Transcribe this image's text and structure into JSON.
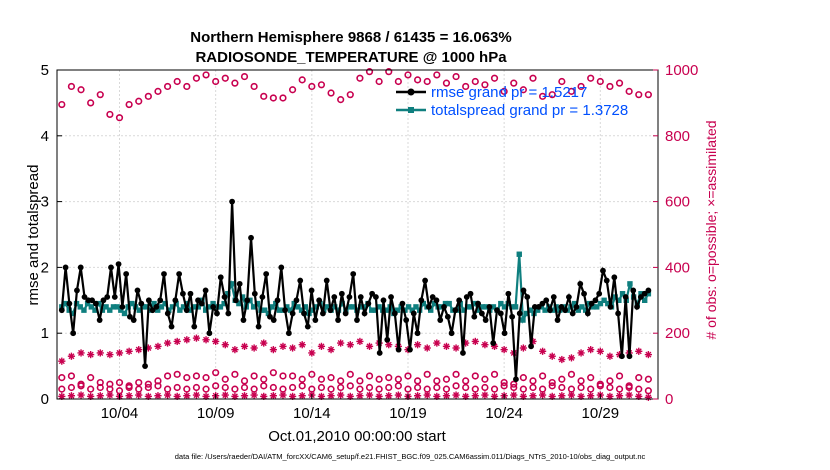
{
  "chart_data": {
    "type": "line",
    "title_line1": "Northern Hemisphere 9868 / 61435 = 16.063%",
    "title_line2": "RADIOSONDE_TEMPERATURE @ 1000 hPa",
    "xlabel": "Oct.01,2010 00:00:00 start",
    "ylabel": "rmse and totalspread",
    "ylabel_right": "# of obs: o=possible; ×=assimilated",
    "x_ticks": [
      "10/04",
      "10/09",
      "10/14",
      "10/19",
      "10/24",
      "10/29"
    ],
    "y_ticks": [
      "0",
      "1",
      "2",
      "3",
      "4",
      "5"
    ],
    "y_ticks_right": [
      "0",
      "200",
      "400",
      "600",
      "800",
      "1000"
    ],
    "xlim": [
      0.75,
      32.0
    ],
    "ylim": [
      0,
      5
    ],
    "ylim_right": [
      0,
      1000
    ],
    "legend": [
      {
        "label": "rmse grand pr = 1.5217",
        "color": "#000000"
      },
      {
        "label": "totalspread grand pr = 1.3728",
        "color": "#0f7f7f"
      }
    ],
    "series": [
      {
        "name": "rmse",
        "axis": "left",
        "color": "#000000",
        "values": [
          1.35,
          2.0,
          1.45,
          1.0,
          1.65,
          2.0,
          1.55,
          1.5,
          1.5,
          1.45,
          1.2,
          1.5,
          1.55,
          2.0,
          1.55,
          2.05,
          1.4,
          1.9,
          1.25,
          1.2,
          1.65,
          1.45,
          0.5,
          1.5,
          1.35,
          1.4,
          1.5,
          1.9,
          1.3,
          1.1,
          1.5,
          1.9,
          1.6,
          1.35,
          1.6,
          1.1,
          1.5,
          1.45,
          1.65,
          1.0,
          1.4,
          1.3,
          1.85,
          1.55,
          1.3,
          3.0,
          1.5,
          1.75,
          1.2,
          1.5,
          2.45,
          1.6,
          1.1,
          1.55,
          1.9,
          1.25,
          1.2,
          1.5,
          2.0,
          1.35,
          1.0,
          1.3,
          1.5,
          1.8,
          1.3,
          1.1,
          1.65,
          1.2,
          1.5,
          1.3,
          1.8,
          1.35,
          1.55,
          1.2,
          1.6,
          1.3,
          1.55,
          1.9,
          1.2,
          1.55,
          1.3,
          1.45,
          1.6,
          1.55,
          0.7,
          1.5,
          0.9,
          1.55,
          1.3,
          0.75,
          1.45,
          1.2,
          0.75,
          1.3,
          1.0,
          1.5,
          1.8,
          1.4,
          1.55,
          1.5,
          1.2,
          1.4,
          1.25,
          1.0,
          1.35,
          1.5,
          0.7,
          1.55,
          1.6,
          1.25,
          1.45,
          1.3,
          1.2,
          1.4,
          0.85,
          1.35,
          1.3,
          1.0,
          1.6,
          1.25,
          0.3,
          1.3,
          1.65,
          1.55,
          0.8,
          1.4,
          1.4,
          1.45,
          1.5,
          1.35,
          1.55,
          1.2,
          1.4,
          1.35,
          1.55,
          1.3,
          1.4,
          1.75,
          1.6,
          1.3,
          1.45,
          1.5,
          1.6,
          1.95,
          1.8,
          1.4,
          1.85,
          1.3,
          0.65,
          1.55,
          0.65,
          1.65,
          1.4,
          1.55,
          1.6,
          1.65
        ]
      },
      {
        "name": "totalspread",
        "axis": "left",
        "color": "#0f7f7f",
        "values": [
          1.4,
          1.45,
          1.35,
          1.3,
          1.45,
          1.4,
          1.35,
          1.45,
          1.4,
          1.35,
          1.45,
          1.35,
          1.4,
          1.35,
          1.4,
          1.4,
          1.35,
          1.3,
          1.4,
          1.45,
          1.4,
          1.35,
          1.4,
          1.4,
          1.35,
          1.45,
          1.35,
          1.4,
          1.45,
          1.35,
          1.4,
          1.45,
          1.35,
          1.4,
          1.45,
          1.35,
          1.4,
          1.4,
          1.5,
          1.35,
          1.4,
          1.45,
          1.4,
          1.4,
          1.45,
          1.6,
          1.75,
          1.5,
          1.45,
          1.55,
          1.4,
          1.5,
          1.4,
          1.45,
          1.35,
          1.35,
          1.3,
          1.4,
          1.45,
          1.35,
          1.35,
          1.4,
          1.35,
          1.45,
          1.4,
          1.35,
          1.4,
          1.3,
          1.35,
          1.4,
          1.45,
          1.35,
          1.4,
          1.35,
          1.4,
          1.35,
          1.45,
          1.35,
          1.4,
          1.4,
          1.35,
          1.4,
          1.4,
          1.45,
          1.35,
          1.35,
          1.4,
          1.35,
          1.35,
          1.4,
          1.3,
          1.35,
          1.4,
          1.35,
          1.4,
          1.35,
          1.4,
          1.35,
          1.45,
          1.4,
          1.35,
          1.45,
          1.4,
          1.4,
          1.45,
          1.45,
          1.35,
          1.35,
          1.45,
          1.35,
          1.4,
          1.4,
          1.45,
          1.35,
          1.4,
          1.4,
          1.35,
          1.4,
          1.35,
          1.45,
          1.4,
          1.45,
          1.4,
          1.4,
          2.2,
          1.2,
          1.3,
          1.35,
          1.3,
          1.35,
          1.4,
          1.35,
          1.4,
          1.35,
          1.4,
          1.35,
          1.4,
          1.35,
          1.4,
          1.45,
          1.35,
          1.4,
          1.35,
          1.45,
          1.4,
          1.4,
          1.45,
          1.5,
          1.45,
          1.4,
          1.55,
          1.5,
          1.6,
          1.5,
          1.75,
          1.55,
          1.45,
          1.6,
          1.5,
          1.6
        ]
      },
      {
        "name": "obs possible (daily, 00Z)",
        "axis": "right",
        "color": "#c8004f",
        "marker": "o",
        "x": [
          1,
          1.5,
          2,
          2.5,
          3,
          3.5,
          4,
          4.5,
          5,
          5.5,
          6,
          6.5,
          7,
          7.5,
          8,
          8.5,
          9,
          9.5,
          10,
          10.5,
          11,
          11.5,
          12,
          12.5,
          13,
          13.5,
          14,
          14.5,
          15,
          15.5,
          16,
          16.5,
          17,
          17.5,
          18,
          18.5,
          19,
          19.5,
          20,
          20.5,
          21,
          21.5,
          22,
          22.5,
          23,
          23.5,
          24,
          24.5,
          25,
          25.5,
          26,
          26.5,
          27,
          27.5,
          28,
          28.5,
          29,
          29.5,
          30,
          30.5,
          31,
          31.5
        ],
        "values": [
          895,
          950,
          940,
          900,
          925,
          865,
          855,
          895,
          905,
          920,
          935,
          950,
          965,
          950,
          975,
          985,
          965,
          975,
          960,
          980,
          950,
          920,
          915,
          915,
          940,
          970,
          950,
          955,
          930,
          910,
          925,
          975,
          995,
          965,
          995,
          965,
          985,
          970,
          965,
          985,
          960,
          980,
          950,
          965,
          955,
          975,
          935,
          960,
          940,
          975,
          920,
          925,
          965,
          935,
          950,
          975,
          965,
          950,
          960,
          935,
          925,
          925
        ]
      },
      {
        "name": "obs possible (daily, 12Z)",
        "axis": "right",
        "color": "#c8004f",
        "marker": "o",
        "x": [
          1,
          1.5,
          2,
          2.5,
          3,
          3.5,
          4,
          4.5,
          5,
          5.5,
          6,
          6.5,
          7,
          7.5,
          8,
          8.5,
          9,
          9.5,
          10,
          10.5,
          11,
          11.5,
          12,
          12.5,
          13,
          13.5,
          14,
          14.5,
          15,
          15.5,
          16,
          16.5,
          17,
          17.5,
          18,
          18.5,
          19,
          19.5,
          20,
          20.5,
          21,
          21.5,
          22,
          22.5,
          23,
          23.5,
          24,
          24.5,
          25,
          25.5,
          26,
          26.5,
          27,
          27.5,
          28,
          28.5,
          29,
          29.5,
          30,
          30.5,
          31,
          31.5
        ],
        "values": [
          65,
          70,
          45,
          65,
          50,
          45,
          50,
          40,
          50,
          45,
          55,
          70,
          75,
          65,
          70,
          65,
          80,
          60,
          75,
          55,
          70,
          60,
          80,
          70,
          70,
          60,
          75,
          60,
          65,
          55,
          75,
          55,
          70,
          60,
          65,
          60,
          70,
          55,
          75,
          55,
          60,
          75,
          55,
          70,
          60,
          75,
          50,
          45,
          65,
          55,
          70,
          50,
          60,
          75,
          55,
          65,
          45,
          55,
          70,
          40,
          65,
          60
        ]
      },
      {
        "name": "obs possible (small)",
        "axis": "right",
        "color": "#c8004f",
        "marker": "o",
        "x": [
          1,
          1.5,
          2,
          2.5,
          3,
          3.5,
          4,
          4.5,
          5,
          5.5,
          6,
          6.5,
          7,
          7.5,
          8,
          8.5,
          9,
          9.5,
          10,
          10.5,
          11,
          11.5,
          12,
          12.5,
          13,
          13.5,
          14,
          14.5,
          15,
          15.5,
          16,
          16.5,
          17,
          17.5,
          18,
          18.5,
          19,
          19.5,
          20,
          20.5,
          21,
          21.5,
          22,
          22.5,
          23,
          23.5,
          24,
          24.5,
          25,
          25.5,
          26,
          26.5,
          27,
          27.5,
          28,
          28.5,
          29,
          29.5,
          30,
          30.5,
          31,
          31.5
        ],
        "values": [
          30,
          35,
          40,
          30,
          35,
          30,
          25,
          35,
          30,
          35,
          40,
          30,
          35,
          30,
          35,
          30,
          40,
          35,
          30,
          35,
          30,
          40,
          35,
          30,
          35,
          40,
          30,
          35,
          30,
          35,
          40,
          30,
          35,
          30,
          35,
          40,
          30,
          35,
          30,
          35,
          30,
          40,
          35,
          30,
          35,
          30,
          40,
          35,
          30,
          35,
          30,
          40,
          35,
          30,
          35,
          30,
          40,
          35,
          30,
          35,
          30,
          25
        ]
      },
      {
        "name": "obs assimilated (00Z)",
        "axis": "right",
        "color": "#c8004f",
        "marker": "*",
        "x": [
          1,
          1.5,
          2,
          2.5,
          3,
          3.5,
          4,
          4.5,
          5,
          5.5,
          6,
          6.5,
          7,
          7.5,
          8,
          8.5,
          9,
          9.5,
          10,
          10.5,
          11,
          11.5,
          12,
          12.5,
          13,
          13.5,
          14,
          14.5,
          15,
          15.5,
          16,
          16.5,
          17,
          17.5,
          18,
          18.5,
          19,
          19.5,
          20,
          20.5,
          21,
          21.5,
          22,
          22.5,
          23,
          23.5,
          24,
          24.5,
          25,
          25.5,
          26,
          26.5,
          27,
          27.5,
          28,
          28.5,
          29,
          29.5,
          30,
          30.5,
          31,
          31.5
        ],
        "values": [
          115,
          130,
          140,
          135,
          140,
          135,
          140,
          145,
          150,
          155,
          160,
          170,
          175,
          180,
          185,
          180,
          175,
          165,
          150,
          160,
          155,
          170,
          150,
          160,
          155,
          165,
          140,
          160,
          150,
          170,
          165,
          175,
          160,
          170,
          165,
          160,
          150,
          165,
          155,
          170,
          160,
          155,
          170,
          175,
          165,
          160,
          150,
          140,
          155,
          175,
          145,
          130,
          120,
          125,
          140,
          150,
          145,
          130,
          135,
          140,
          145,
          135
        ]
      },
      {
        "name": "obs assimilated (12Z)",
        "axis": "right",
        "color": "#c8004f",
        "marker": "*",
        "x": [
          1,
          1.5,
          2,
          2.5,
          3,
          3.5,
          4,
          4.5,
          5,
          5.5,
          6,
          6.5,
          7,
          7.5,
          8,
          8.5,
          9,
          9.5,
          10,
          10.5,
          11,
          11.5,
          12,
          12.5,
          13,
          13.5,
          14,
          14.5,
          15,
          15.5,
          16,
          16.5,
          17,
          17.5,
          18,
          18.5,
          19,
          19.5,
          20,
          20.5,
          21,
          21.5,
          22,
          22.5,
          23,
          23.5,
          24,
          24.5,
          25,
          25.5,
          26,
          26.5,
          27,
          27.5,
          28,
          28.5,
          29,
          29.5,
          30,
          30.5,
          31,
          31.5
        ],
        "values": [
          8,
          10,
          12,
          8,
          10,
          12,
          8,
          10,
          12,
          8,
          10,
          12,
          8,
          10,
          12,
          8,
          10,
          12,
          8,
          10,
          12,
          8,
          10,
          12,
          8,
          10,
          12,
          8,
          10,
          12,
          8,
          10,
          12,
          8,
          10,
          12,
          8,
          10,
          12,
          8,
          10,
          12,
          8,
          10,
          12,
          8,
          10,
          12,
          8,
          10,
          12,
          8,
          10,
          12,
          8,
          10,
          12,
          8,
          10,
          12,
          8,
          5
        ]
      }
    ]
  },
  "footer": "data file: /Users/raeder/DAI/ATM_forcXX/CAM6_setup/f.e21.FHIST_BGC.f09_025.CAM6assim.011/Diags_NTrS_2010-10/obs_diag_output.nc"
}
